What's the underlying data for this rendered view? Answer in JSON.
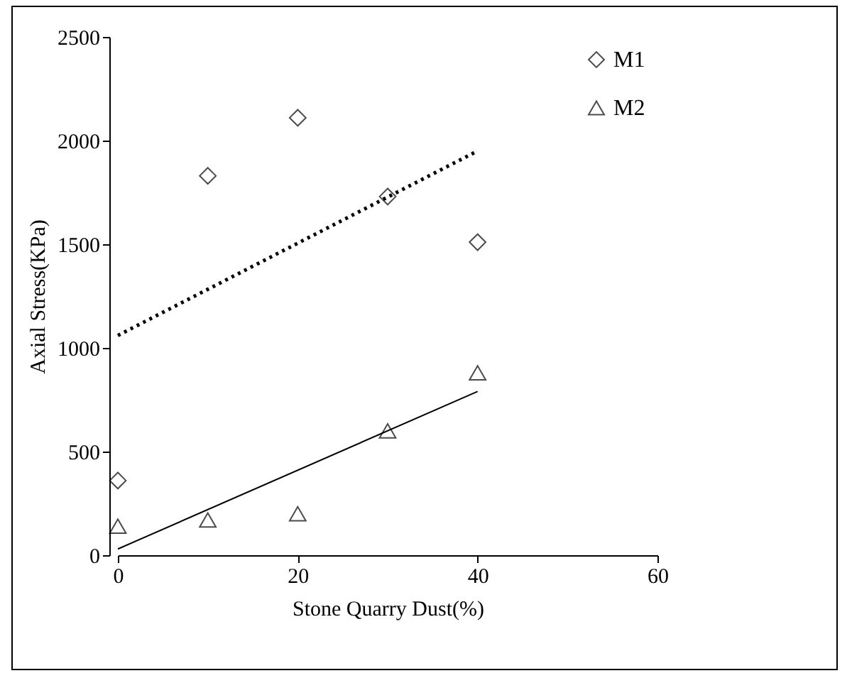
{
  "chart_data": {
    "type": "scatter",
    "xlabel": "Stone Quarry Dust(%)",
    "ylabel": "Axial Stress(KPa)",
    "xlim": [
      0,
      60
    ],
    "xticks": [
      0,
      20,
      40,
      60
    ],
    "ylim": [
      0,
      2500
    ],
    "yticks": [
      0,
      500,
      1000,
      1500,
      2000,
      2500
    ],
    "grid": false,
    "legend": "top right",
    "series": [
      {
        "name": "M1",
        "type": "scatter",
        "marker": "diamond",
        "color": "#000000",
        "x": [
          0,
          10,
          20,
          30,
          40
        ],
        "values": [
          360,
          1830,
          2110,
          1730,
          1510
        ]
      },
      {
        "name": "M2",
        "type": "scatter",
        "marker": "triangle",
        "color": "#000000",
        "x": [
          0,
          10,
          20,
          30,
          40
        ],
        "values": [
          140,
          170,
          200,
          600,
          880
        ]
      },
      {
        "type": "line",
        "line_style": "dotted",
        "color": "#000000",
        "x": [
          0,
          40
        ],
        "values": [
          1060,
          1950
        ]
      },
      {
        "type": "line",
        "line_style": "solid",
        "color": "#000000",
        "x": [
          0,
          40
        ],
        "values": [
          30,
          790
        ]
      }
    ]
  }
}
